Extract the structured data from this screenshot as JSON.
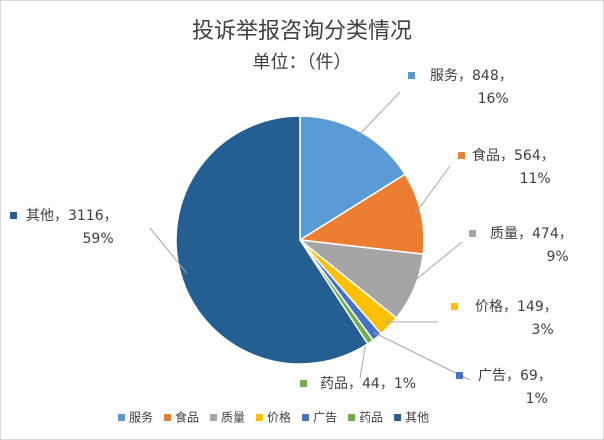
{
  "chart_data": {
    "type": "pie",
    "title": "投诉举报咨询分类情况",
    "subtitle": "单位：（件）",
    "categories": [
      "服务",
      "食品",
      "质量",
      "价格",
      "广告",
      "药品",
      "其他"
    ],
    "values": [
      848,
      564,
      474,
      149,
      69,
      44,
      3116
    ],
    "percent_labels": [
      "16%",
      "11%",
      "9%",
      "3%",
      "1%",
      "1%",
      "59%"
    ],
    "label_separator": "，",
    "colors": [
      "#5b9bd5",
      "#ed7d31",
      "#a5a5a5",
      "#ffc000",
      "#4472c4",
      "#70ad47",
      "#255e91"
    ],
    "legend": "bottom"
  }
}
